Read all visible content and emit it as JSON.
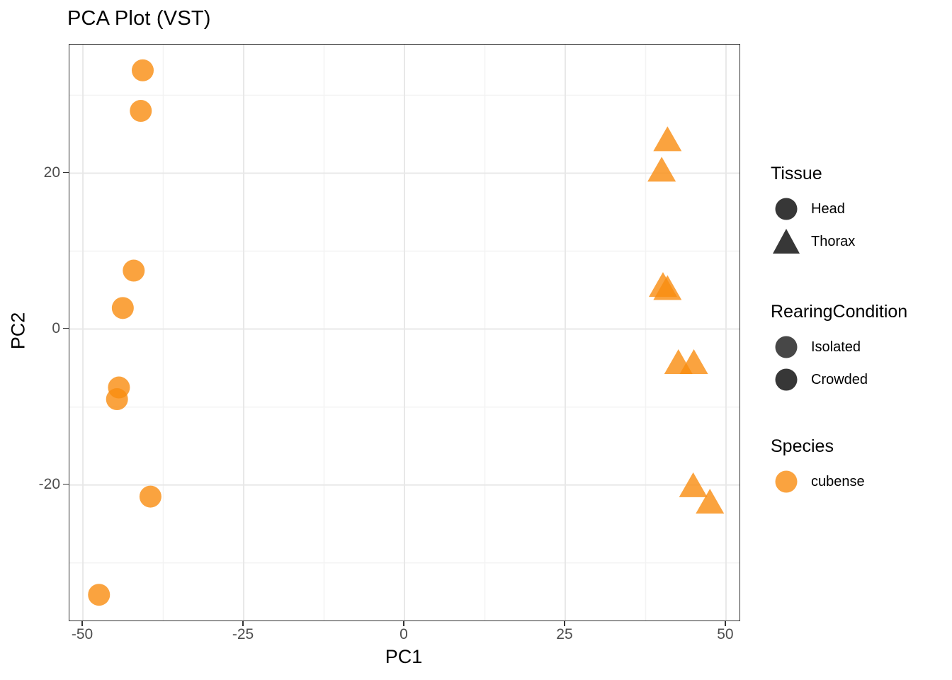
{
  "title": "PCA Plot (VST)",
  "colors": {
    "point_orange": "#F98C0F",
    "point_alpha": 0.8,
    "legend_key_dark": "#373737",
    "panel_border": "#333333",
    "grid_major": "#E8E8E8",
    "grid_minor": "#F3F3F3",
    "tick_text": "#4d4d4d"
  },
  "chart_data": {
    "type": "scatter",
    "title": "PCA Plot (VST)",
    "xlabel": "PC1",
    "ylabel": "PC2",
    "xlim": [
      -52.1,
      52.1
    ],
    "ylim": [
      -37.4,
      36.5
    ],
    "x_ticks": [
      -50,
      -25,
      0,
      25,
      50
    ],
    "y_ticks": [
      -20,
      0,
      20
    ],
    "x_minor": [
      -37.5,
      -12.5,
      12.5,
      37.5
    ],
    "y_minor": [
      -30,
      -10,
      10,
      30
    ],
    "grid": true,
    "legend_position": "right",
    "point_color": "#F98C0F",
    "point_alpha": 0.8,
    "series": [
      {
        "name": "Head",
        "tissue": "Head",
        "species": "cubense",
        "shape": "circle",
        "points": [
          [
            -40.7,
            33.2
          ],
          [
            -41.0,
            28.0
          ],
          [
            -42.1,
            7.5
          ],
          [
            -43.8,
            2.7
          ],
          [
            -44.4,
            -7.5
          ],
          [
            -44.7,
            -9.0
          ],
          [
            -39.5,
            -21.5
          ],
          [
            -47.5,
            -34.1
          ]
        ]
      },
      {
        "name": "Thorax",
        "tissue": "Thorax",
        "species": "cubense",
        "shape": "triangle",
        "points": [
          [
            40.9,
            24.1
          ],
          [
            40.0,
            20.2
          ],
          [
            40.2,
            5.4
          ],
          [
            40.9,
            5.0
          ],
          [
            42.6,
            -4.5
          ],
          [
            45.0,
            -4.5
          ],
          [
            44.9,
            -20.3
          ],
          [
            47.5,
            -22.4
          ]
        ]
      }
    ]
  },
  "legend": {
    "tissue": {
      "title": "Tissue",
      "items": [
        {
          "label": "Head",
          "shape": "circle"
        },
        {
          "label": "Thorax",
          "shape": "triangle"
        }
      ]
    },
    "rearing": {
      "title": "RearingCondition",
      "items": [
        {
          "label": "Isolated",
          "shape": "circle"
        },
        {
          "label": "Crowded",
          "shape": "circle"
        }
      ]
    },
    "species": {
      "title": "Species",
      "items": [
        {
          "label": "cubense",
          "shape": "circle",
          "color": "#F98C0F"
        }
      ]
    }
  }
}
